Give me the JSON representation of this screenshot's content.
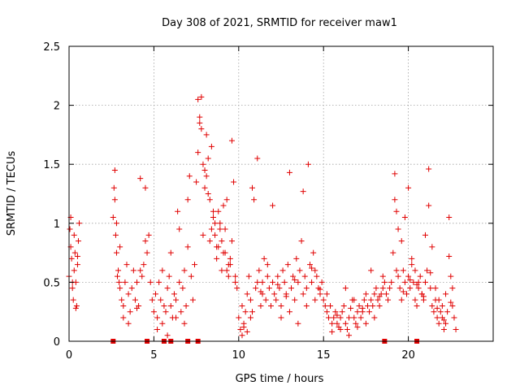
{
  "chart_data": {
    "type": "scatter",
    "title": "Day 308 of 2021, SRMTID for receiver maw1",
    "xlabel": "GPS time / hours",
    "ylabel": "SRMTID / TECUs",
    "xlim": [
      0,
      25
    ],
    "ylim": [
      0,
      2.5
    ],
    "grid": true,
    "marker": "+",
    "color": "#e00000",
    "xticks": [
      0,
      5,
      10,
      15,
      20
    ],
    "xtick_labels": [
      "0",
      "5",
      "10",
      "15",
      "20"
    ],
    "yticks": [
      0,
      0.5,
      1,
      1.5,
      2,
      2.5
    ],
    "ytick_labels": [
      "0",
      "0.5",
      "1",
      "1.5",
      "2",
      "2.5"
    ],
    "series": [
      {
        "name": "maw1",
        "x": [
          0.0,
          0.05,
          0.1,
          0.15,
          0.2,
          0.25,
          0.3,
          0.35,
          0.4,
          0.45,
          0.5,
          0.55,
          0.6,
          0.1,
          0.2,
          0.3,
          0.4,
          0.5,
          2.6,
          2.65,
          2.7,
          2.75,
          2.8,
          2.85,
          2.9,
          2.95,
          3.0,
          3.1,
          3.2,
          3.3,
          3.4,
          3.5,
          3.6,
          3.7,
          3.8,
          3.9,
          4.0,
          4.1,
          4.2,
          4.3,
          4.4,
          4.5,
          4.6,
          4.7,
          4.8,
          4.9,
          5.0,
          2.7,
          2.8,
          3.0,
          3.2,
          3.5,
          4.0,
          4.2,
          4.5,
          5.1,
          5.2,
          5.3,
          5.4,
          5.5,
          5.6,
          5.7,
          5.8,
          5.9,
          6.0,
          6.1,
          6.2,
          6.3,
          6.4,
          6.5,
          6.6,
          6.7,
          6.8,
          6.9,
          7.0,
          7.1,
          7.2,
          7.3,
          7.4,
          5.5,
          6.0,
          6.5,
          7.0,
          5.2,
          5.8,
          6.3,
          6.8,
          7.5,
          7.6,
          7.7,
          7.8,
          7.9,
          8.0,
          8.1,
          8.2,
          8.3,
          8.4,
          8.5,
          8.6,
          8.7,
          8.8,
          8.9,
          9.0,
          9.1,
          9.2,
          9.3,
          9.4,
          9.5,
          9.6,
          9.7,
          9.8,
          9.9,
          7.6,
          7.8,
          8.0,
          8.2,
          8.4,
          8.6,
          8.8,
          9.0,
          9.2,
          9.4,
          9.6,
          9.8,
          7.7,
          7.9,
          8.1,
          8.3,
          8.5,
          8.7,
          8.9,
          9.1,
          9.3,
          9.5,
          10.0,
          10.1,
          10.2,
          10.3,
          10.4,
          10.5,
          10.6,
          10.7,
          10.8,
          10.9,
          11.0,
          11.1,
          11.2,
          11.3,
          11.4,
          11.5,
          11.6,
          11.7,
          11.8,
          11.9,
          12.0,
          10.2,
          10.5,
          10.8,
          11.1,
          11.4,
          11.7,
          12.0,
          10.3,
          10.7,
          11.3,
          12.1,
          12.2,
          12.3,
          12.4,
          12.5,
          12.6,
          12.7,
          12.8,
          12.9,
          13.0,
          13.1,
          13.2,
          13.3,
          13.4,
          13.5,
          13.6,
          13.7,
          13.8,
          13.9,
          14.0,
          14.1,
          14.2,
          14.3,
          14.4,
          14.5,
          14.6,
          14.7,
          14.8,
          14.9,
          12.5,
          13.0,
          13.5,
          14.0,
          14.5,
          12.3,
          12.8,
          13.3,
          13.8,
          14.3,
          14.8,
          15.0,
          15.1,
          15.2,
          15.3,
          15.4,
          15.5,
          15.6,
          15.7,
          15.8,
          15.9,
          16.0,
          16.1,
          16.2,
          16.3,
          16.4,
          16.5,
          16.6,
          16.7,
          16.8,
          16.9,
          17.0,
          17.1,
          17.2,
          17.3,
          17.4,
          17.5,
          17.6,
          17.7,
          17.8,
          17.9,
          18.0,
          18.1,
          18.2,
          18.3,
          18.4,
          18.5,
          18.6,
          18.7,
          18.8,
          18.9,
          15.5,
          16.0,
          16.5,
          17.0,
          17.5,
          18.0,
          18.5,
          15.2,
          15.8,
          16.3,
          16.8,
          17.3,
          17.8,
          18.3,
          19.0,
          19.1,
          19.2,
          19.3,
          19.4,
          19.5,
          19.6,
          19.7,
          19.8,
          19.9,
          20.0,
          20.1,
          20.2,
          20.3,
          20.4,
          20.5,
          20.6,
          20.7,
          20.8,
          20.9,
          21.0,
          21.1,
          21.2,
          21.3,
          21.4,
          21.5,
          21.6,
          21.7,
          21.8,
          21.9,
          22.0,
          22.1,
          22.2,
          22.3,
          22.4,
          22.5,
          22.6,
          22.7,
          22.8,
          19.2,
          19.4,
          19.6,
          19.8,
          20.0,
          20.2,
          20.4,
          20.6,
          20.8,
          21.0,
          21.2,
          21.4,
          21.6,
          21.8,
          22.0,
          22.2,
          22.4,
          22.6,
          19.3,
          19.7,
          20.1,
          20.5,
          20.9,
          21.3,
          21.7,
          22.1,
          22.5,
          2.6,
          4.6,
          5.6,
          6.0,
          7.0,
          7.6,
          18.6,
          20.5
        ],
        "y": [
          0.55,
          0.95,
          1.05,
          0.7,
          0.5,
          0.35,
          0.6,
          0.75,
          0.5,
          0.3,
          0.65,
          0.85,
          1.0,
          0.8,
          0.45,
          0.9,
          0.28,
          0.72,
          1.05,
          1.3,
          1.45,
          0.9,
          0.75,
          0.55,
          0.6,
          0.5,
          0.45,
          0.35,
          0.3,
          0.5,
          0.65,
          0.4,
          0.25,
          0.45,
          0.6,
          0.35,
          0.5,
          0.3,
          1.38,
          0.55,
          0.65,
          1.3,
          0.75,
          0.9,
          0.5,
          0.35,
          0.25,
          1.2,
          1.0,
          0.8,
          0.2,
          0.15,
          0.28,
          0.6,
          0.85,
          0.4,
          0.2,
          0.5,
          0.35,
          0.15,
          0.3,
          0.25,
          0.45,
          0.55,
          0.3,
          0.2,
          0.4,
          0.35,
          1.1,
          0.5,
          0.25,
          0.45,
          0.6,
          0.3,
          0.8,
          1.4,
          0.55,
          0.35,
          0.65,
          0.6,
          0.75,
          0.95,
          1.2,
          0.1,
          0.05,
          0.2,
          0.15,
          1.35,
          1.6,
          1.9,
          2.07,
          1.5,
          1.3,
          1.75,
          1.55,
          0.85,
          0.95,
          1.1,
          0.9,
          0.7,
          0.8,
          1.0,
          0.6,
          0.75,
          0.95,
          1.2,
          0.55,
          0.65,
          0.85,
          1.35,
          0.5,
          0.45,
          2.05,
          1.8,
          1.45,
          1.25,
          1.65,
          1.0,
          1.1,
          0.85,
          0.75,
          0.65,
          1.7,
          0.55,
          1.85,
          0.9,
          1.4,
          1.2,
          1.05,
          0.8,
          0.95,
          1.15,
          0.6,
          0.7,
          0.2,
          0.1,
          0.3,
          0.15,
          0.25,
          0.4,
          0.55,
          0.35,
          1.3,
          1.2,
          0.45,
          0.5,
          0.6,
          0.3,
          0.4,
          0.7,
          0.35,
          0.55,
          0.45,
          0.3,
          0.5,
          0.05,
          0.08,
          0.25,
          1.55,
          0.5,
          0.65,
          1.15,
          0.12,
          0.2,
          0.42,
          0.4,
          0.35,
          0.55,
          0.45,
          0.3,
          0.6,
          0.5,
          0.4,
          0.65,
          1.43,
          0.45,
          0.55,
          0.35,
          0.7,
          0.5,
          0.6,
          0.85,
          0.4,
          0.55,
          0.45,
          1.5,
          0.65,
          0.5,
          0.75,
          0.6,
          0.55,
          0.45,
          0.4,
          0.5,
          0.2,
          0.25,
          0.15,
          0.3,
          0.35,
          0.48,
          0.38,
          0.52,
          1.27,
          0.62,
          0.44,
          0.35,
          0.3,
          0.25,
          0.2,
          0.3,
          0.15,
          0.2,
          0.25,
          0.15,
          0.12,
          0.2,
          0.25,
          0.3,
          0.15,
          0.1,
          0.2,
          0.28,
          0.35,
          0.2,
          0.15,
          0.25,
          0.3,
          0.2,
          0.25,
          0.35,
          0.4,
          0.3,
          0.25,
          0.35,
          0.3,
          0.4,
          0.45,
          0.35,
          0.3,
          0.4,
          0.45,
          0.5,
          0.4,
          0.35,
          0.45,
          0.08,
          0.1,
          0.05,
          0.12,
          0.15,
          0.2,
          0.55,
          0.4,
          0.22,
          0.45,
          0.35,
          0.28,
          0.6,
          0.38,
          0.5,
          0.75,
          1.42,
          1.1,
          0.55,
          0.45,
          0.35,
          0.6,
          0.5,
          0.4,
          0.55,
          0.45,
          0.65,
          0.5,
          0.35,
          0.3,
          0.45,
          0.55,
          0.4,
          0.35,
          0.5,
          0.6,
          1.46,
          0.45,
          0.3,
          0.25,
          0.35,
          0.2,
          0.15,
          0.25,
          0.2,
          0.1,
          0.15,
          0.25,
          1.05,
          0.55,
          0.3,
          0.2,
          0.1,
          1.2,
          0.95,
          0.85,
          1.05,
          1.3,
          0.7,
          0.6,
          0.5,
          0.4,
          0.9,
          1.15,
          0.8,
          0.45,
          0.35,
          0.3,
          0.4,
          0.72,
          0.45,
          0.6,
          0.42,
          0.52,
          0.48,
          0.38,
          0.58,
          0.28,
          0.18,
          0.33,
          0.0,
          0.0,
          0.0,
          0.0,
          0.0,
          0.0,
          0.0,
          0.0
        ]
      }
    ]
  }
}
